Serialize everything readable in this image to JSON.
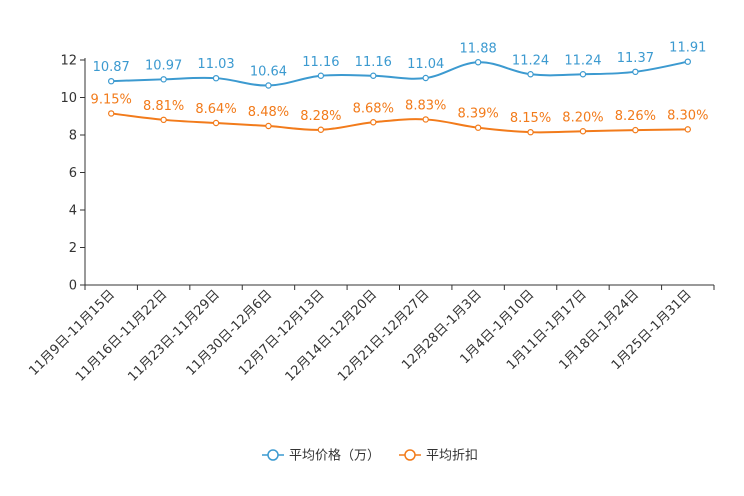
{
  "chart_data": {
    "type": "line",
    "title": "",
    "xlabel": "",
    "ylabel": "",
    "ylim": [
      0,
      12
    ],
    "yticks": [
      "0",
      "2",
      "4",
      "6",
      "8",
      "10",
      "12"
    ],
    "grid": false,
    "legend_position": "bottom-center",
    "categories": [
      "11月9日-11月15日",
      "11月16日-11月22日",
      "11月23日-11月29日",
      "11月30日-12月6日",
      "12月7日-12月13日",
      "12月14日-12月20日",
      "12月21日-12月27日",
      "12月28日-1月3日",
      "1月4日-1月10日",
      "1月11日-1月17日",
      "1月18日-1月24日",
      "1月25日-1月31日"
    ],
    "series": [
      {
        "name": "平均价格（万）",
        "color": "#3c9ad0",
        "values": [
          10.87,
          10.97,
          11.03,
          10.64,
          11.16,
          11.16,
          11.04,
          11.88,
          11.24,
          11.24,
          11.37,
          11.91
        ],
        "labels": [
          "10.87",
          "10.97",
          "11.03",
          "10.64",
          "11.16",
          "11.16",
          "11.04",
          "11.88",
          "11.24",
          "11.24",
          "11.37",
          "11.91"
        ]
      },
      {
        "name": "平均折扣",
        "color": "#f27b1b",
        "values": [
          9.15,
          8.81,
          8.64,
          8.48,
          8.28,
          8.68,
          8.83,
          8.39,
          8.15,
          8.2,
          8.26,
          8.3
        ],
        "labels": [
          "9.15%",
          "8.81%",
          "8.64%",
          "8.48%",
          "8.28%",
          "8.68%",
          "8.83%",
          "8.39%",
          "8.15%",
          "8.20%",
          "8.26%",
          "8.30%"
        ]
      }
    ]
  }
}
